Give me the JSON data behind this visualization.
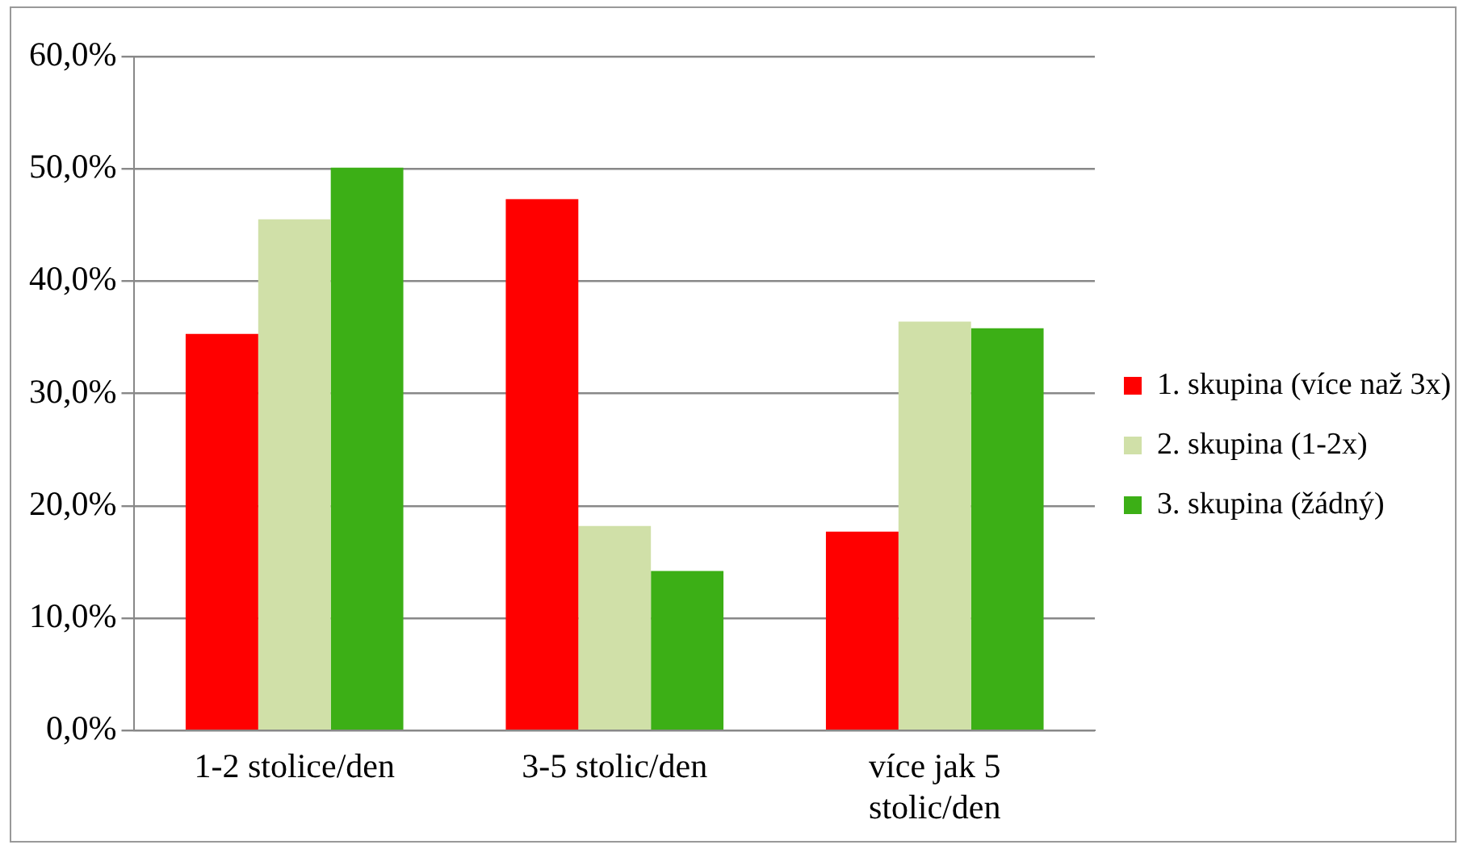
{
  "chart_data": {
    "type": "bar",
    "categories": [
      "1-2 stolice/den",
      "3-5 stolic/den",
      "více jak 5 stolic/den"
    ],
    "series": [
      {
        "name": "1. skupina (více naž 3x)",
        "color": "#ff0000",
        "values": [
          35.3,
          47.3,
          17.7
        ]
      },
      {
        "name": "2. skupina (1-2x)",
        "color": "#d0e0a8",
        "values": [
          45.5,
          18.2,
          36.4
        ]
      },
      {
        "name": "3. skupina (žádný)",
        "color": "#3caf16",
        "values": [
          50.1,
          14.2,
          35.8
        ]
      }
    ],
    "ylim": [
      0,
      60
    ],
    "yticks": [
      {
        "value": 0,
        "label": "0,0%"
      },
      {
        "value": 10,
        "label": "10,0%"
      },
      {
        "value": 20,
        "label": "20,0%"
      },
      {
        "value": 30,
        "label": "30,0%"
      },
      {
        "value": 40,
        "label": "40,0%"
      },
      {
        "value": 50,
        "label": "50,0%"
      },
      {
        "value": 60,
        "label": "60,0%"
      }
    ],
    "grid": "y",
    "legend": "right"
  }
}
